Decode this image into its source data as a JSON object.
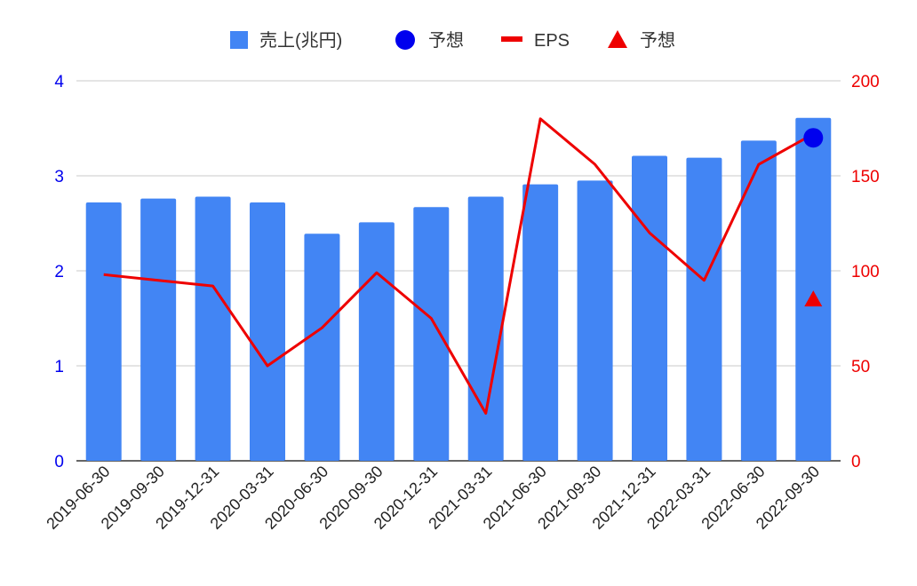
{
  "chart_data": {
    "type": "bar",
    "categories": [
      "2019-06-30",
      "2019-09-30",
      "2019-12-31",
      "2020-03-31",
      "2020-06-30",
      "2020-09-30",
      "2020-12-31",
      "2021-03-31",
      "2021-06-30",
      "2021-09-30",
      "2021-12-31",
      "2022-03-31",
      "2022-06-30",
      "2022-09-30"
    ],
    "series": [
      {
        "name": "売上(兆円)",
        "kind": "bar",
        "axis": "left",
        "color": "#4285f4",
        "values": [
          2.72,
          2.76,
          2.78,
          2.72,
          2.39,
          2.51,
          2.67,
          2.78,
          2.91,
          2.95,
          3.21,
          3.19,
          3.37,
          3.61
        ]
      },
      {
        "name": "予想",
        "kind": "point-circle",
        "axis": "left",
        "color": "#0000ee",
        "values": [
          null,
          null,
          null,
          null,
          null,
          null,
          null,
          null,
          null,
          null,
          null,
          null,
          null,
          3.4
        ]
      },
      {
        "name": "EPS",
        "kind": "line",
        "axis": "right",
        "color": "#ee0000",
        "values": [
          98,
          95,
          92,
          50,
          70,
          99,
          75,
          25,
          180,
          156,
          120,
          95,
          156,
          172
        ]
      },
      {
        "name": "予想",
        "kind": "point-triangle",
        "axis": "right",
        "color": "#ee0000",
        "values": [
          null,
          null,
          null,
          null,
          null,
          null,
          null,
          null,
          null,
          null,
          null,
          null,
          null,
          85
        ]
      }
    ],
    "ylim_left": [
      0,
      4
    ],
    "yticks_left": [
      "0",
      "1",
      "2",
      "3",
      "4"
    ],
    "ylim_right": [
      0,
      200
    ],
    "yticks_right": [
      "0",
      "50",
      "100",
      "150",
      "200"
    ],
    "left_axis_color": "#0000ee",
    "right_axis_color": "#ee0000",
    "grid": true,
    "legend_position": "top"
  }
}
